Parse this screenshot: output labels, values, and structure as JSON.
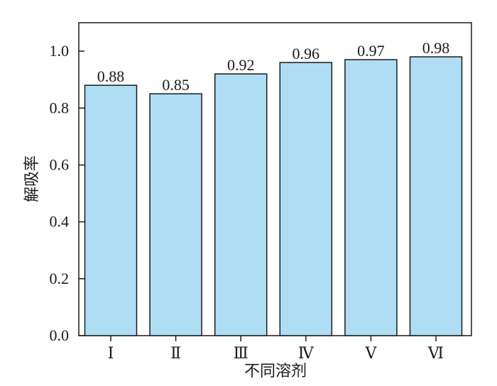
{
  "chart_data": {
    "type": "bar",
    "title": "",
    "xlabel": "不同溶剂",
    "ylabel": "解吸率",
    "categories": [
      "Ⅰ",
      "Ⅱ",
      "Ⅲ",
      "Ⅳ",
      "Ⅴ",
      "Ⅵ"
    ],
    "values": [
      0.88,
      0.85,
      0.92,
      0.96,
      0.97,
      0.98
    ],
    "data_labels": [
      "0.88",
      "0.85",
      "0.92",
      "0.96",
      "0.97",
      "0.98"
    ],
    "ylim": [
      0,
      1.1
    ],
    "yticks": [
      0.0,
      0.2,
      0.4,
      0.6,
      0.8,
      1.0
    ],
    "ytick_labels": [
      "0.0",
      "0.2",
      "0.4",
      "0.6",
      "0.8",
      "1.0"
    ],
    "grid": false,
    "bar_color": "#afdef4",
    "edge_color": "#1a1a1a"
  }
}
